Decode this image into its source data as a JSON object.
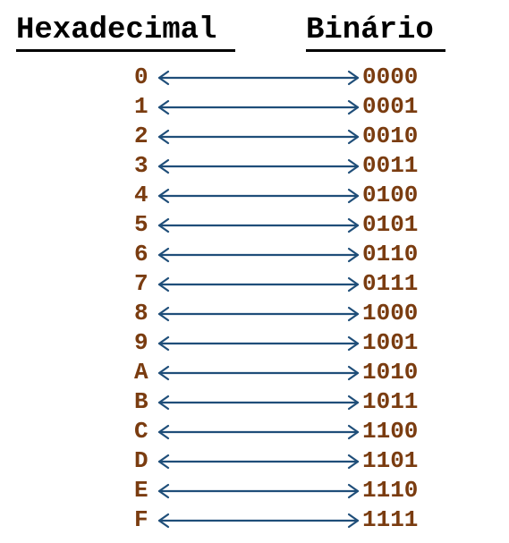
{
  "headers": {
    "hex": "Hexadecimal",
    "bin": "Binário"
  },
  "colors": {
    "text_digits": "#7a3c10",
    "arrow": "#1f4e79",
    "header": "#000000"
  },
  "rows": [
    {
      "hex": "0",
      "bin": "0000"
    },
    {
      "hex": "1",
      "bin": "0001"
    },
    {
      "hex": "2",
      "bin": "0010"
    },
    {
      "hex": "3",
      "bin": "0011"
    },
    {
      "hex": "4",
      "bin": "0100"
    },
    {
      "hex": "5",
      "bin": "0101"
    },
    {
      "hex": "6",
      "bin": "0110"
    },
    {
      "hex": "7",
      "bin": "0111"
    },
    {
      "hex": "8",
      "bin": "1000"
    },
    {
      "hex": "9",
      "bin": "1001"
    },
    {
      "hex": "A",
      "bin": "1010"
    },
    {
      "hex": "B",
      "bin": "1011"
    },
    {
      "hex": "C",
      "bin": "1100"
    },
    {
      "hex": "D",
      "bin": "1101"
    },
    {
      "hex": "E",
      "bin": "1110"
    },
    {
      "hex": "F",
      "bin": "1111"
    }
  ]
}
